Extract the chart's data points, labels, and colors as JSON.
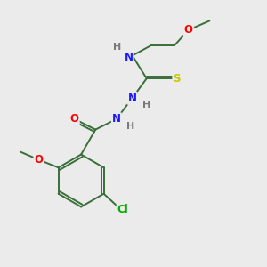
{
  "bg_color": "#ebebeb",
  "bond_color": "#3a6e3a",
  "atom_colors": {
    "O": "#ff0000",
    "N": "#1a1aff",
    "S": "#c8c800",
    "Cl": "#00aa00",
    "H": "#7a7a7a"
  },
  "lw": 1.4,
  "fs": 8.5
}
